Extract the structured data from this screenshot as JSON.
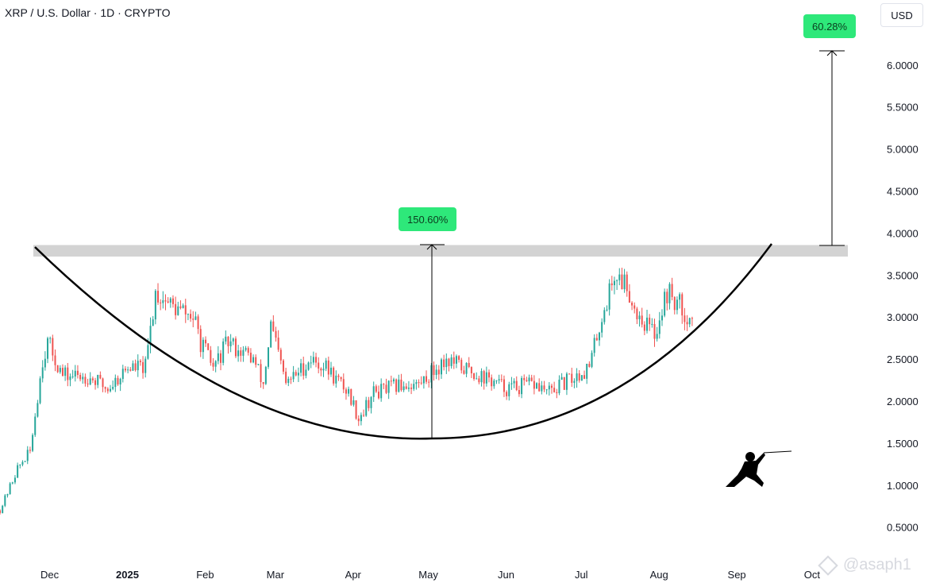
{
  "header": {
    "title": "XRP / U.S. Dollar · 1D · CRYPTO",
    "unit_button": "USD"
  },
  "watermark": {
    "handle": "@asaph1"
  },
  "colors": {
    "up": "#26a69a",
    "down": "#ef5350",
    "badge": "#2ee87a",
    "resistance": "#d3d3d3",
    "curve": "#000000"
  },
  "chart_data": {
    "type": "candlestick",
    "y_axis": {
      "ticks": [
        "6.0000",
        "5.5000",
        "5.0000",
        "4.5000",
        "4.0000",
        "3.5000",
        "3.0000",
        "2.5000",
        "2.0000",
        "1.5000",
        "1.0000",
        "0.5000"
      ],
      "range": [
        0.2,
        6.45
      ]
    },
    "x_axis": {
      "labels": [
        {
          "text": "Dec",
          "bold": false
        },
        {
          "text": "2025",
          "bold": true
        },
        {
          "text": "Feb",
          "bold": false
        },
        {
          "text": "Mar",
          "bold": false
        },
        {
          "text": "Apr",
          "bold": false
        },
        {
          "text": "May",
          "bold": false
        },
        {
          "text": "Jun",
          "bold": false
        },
        {
          "text": "Jul",
          "bold": false
        },
        {
          "text": "Aug",
          "bold": false
        },
        {
          "text": "Sep",
          "bold": false
        },
        {
          "text": "Oct",
          "bold": false
        }
      ]
    },
    "price_path": [
      [
        "2024-11-15",
        0.7
      ],
      [
        "2024-11-22",
        1.2
      ],
      [
        "2024-11-27",
        1.4
      ],
      [
        "2024-12-02",
        2.5
      ],
      [
        "2024-12-04",
        2.7
      ],
      [
        "2024-12-10",
        2.3
      ],
      [
        "2024-12-20",
        2.3
      ],
      [
        "2024-12-28",
        2.15
      ],
      [
        "2025-01-05",
        2.4
      ],
      [
        "2025-01-12",
        2.4
      ],
      [
        "2025-01-16",
        3.3
      ],
      [
        "2025-01-24",
        3.1
      ],
      [
        "2025-01-31",
        3.0
      ],
      [
        "2025-02-03",
        2.7
      ],
      [
        "2025-02-08",
        2.4
      ],
      [
        "2025-02-14",
        2.7
      ],
      [
        "2025-02-24",
        2.5
      ],
      [
        "2025-02-28",
        2.2
      ],
      [
        "2025-03-03",
        2.9
      ],
      [
        "2025-03-09",
        2.2
      ],
      [
        "2025-03-19",
        2.5
      ],
      [
        "2025-03-25",
        2.4
      ],
      [
        "2025-04-03",
        2.1
      ],
      [
        "2025-04-07",
        1.8
      ],
      [
        "2025-04-13",
        2.1
      ],
      [
        "2025-04-25",
        2.2
      ],
      [
        "2025-05-01",
        2.2
      ],
      [
        "2025-05-12",
        2.5
      ],
      [
        "2025-05-18",
        2.4
      ],
      [
        "2025-05-26",
        2.3
      ],
      [
        "2025-06-05",
        2.15
      ],
      [
        "2025-06-16",
        2.2
      ],
      [
        "2025-06-22",
        2.1
      ],
      [
        "2025-06-30",
        2.25
      ],
      [
        "2025-07-08",
        2.4
      ],
      [
        "2025-07-12",
        2.9
      ],
      [
        "2025-07-18",
        3.5
      ],
      [
        "2025-07-23",
        3.4
      ],
      [
        "2025-07-26",
        3.1
      ],
      [
        "2025-08-03",
        2.8
      ],
      [
        "2025-08-08",
        3.3
      ],
      [
        "2025-08-14",
        3.1
      ],
      [
        "2025-08-18",
        2.95
      ]
    ],
    "resistance_zone": [
      3.72,
      3.86
    ],
    "measurements": [
      {
        "label": "150.60%",
        "from": 1.54,
        "to": 3.86
      },
      {
        "label": "60.28%",
        "from": 3.86,
        "to": 6.18
      }
    ],
    "cup_curve": {
      "start": 3.83,
      "bottom": 1.54,
      "end": 3.86
    }
  }
}
